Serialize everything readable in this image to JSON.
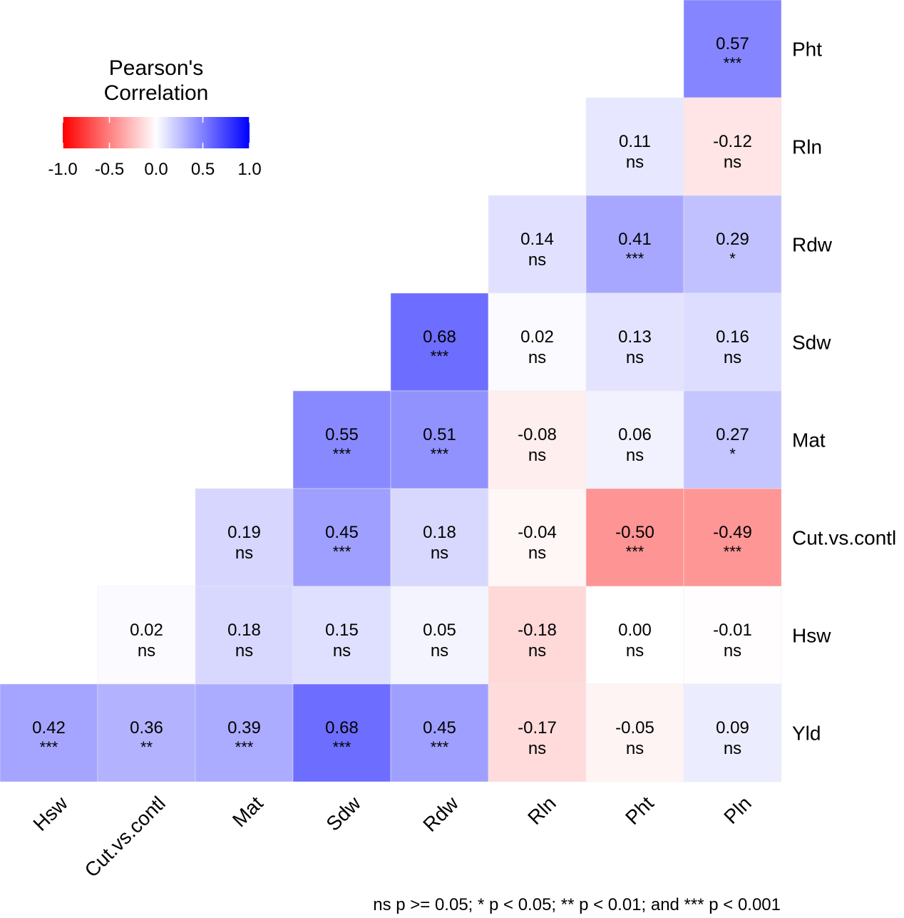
{
  "chart_data": {
    "type": "heatmap",
    "legend": {
      "title_line1": "Pearson's",
      "title_line2": "Correlation",
      "ticks": [
        -1.0,
        -0.5,
        0.0,
        0.5,
        1.0
      ],
      "tick_labels": [
        "-1.0",
        "-0.5",
        "0.0",
        "0.5",
        "1.0"
      ],
      "color_low": "#ff0000",
      "color_mid": "#ffffff",
      "color_high": "#0000ff",
      "placement": "top-left"
    },
    "x_labels": [
      "Hsw",
      "Cut.vs.contl",
      "Mat",
      "Sdw",
      "Rdw",
      "Rln",
      "Pht",
      "Pln"
    ],
    "y_labels": [
      "Pht",
      "Rln",
      "Rdw",
      "Sdw",
      "Mat",
      "Cut.vs.contl",
      "Hsw",
      "Yld"
    ],
    "cells": [
      {
        "row": 0,
        "col": 7,
        "value": 0.57,
        "label": "0.57",
        "sig": "***"
      },
      {
        "row": 1,
        "col": 6,
        "value": 0.11,
        "label": "0.11",
        "sig": "ns"
      },
      {
        "row": 1,
        "col": 7,
        "value": -0.12,
        "label": "-0.12",
        "sig": "ns"
      },
      {
        "row": 2,
        "col": 5,
        "value": 0.14,
        "label": "0.14",
        "sig": "ns"
      },
      {
        "row": 2,
        "col": 6,
        "value": 0.41,
        "label": "0.41",
        "sig": "***"
      },
      {
        "row": 2,
        "col": 7,
        "value": 0.29,
        "label": "0.29",
        "sig": "*"
      },
      {
        "row": 3,
        "col": 4,
        "value": 0.68,
        "label": "0.68",
        "sig": "***"
      },
      {
        "row": 3,
        "col": 5,
        "value": 0.02,
        "label": "0.02",
        "sig": "ns"
      },
      {
        "row": 3,
        "col": 6,
        "value": 0.13,
        "label": "0.13",
        "sig": "ns"
      },
      {
        "row": 3,
        "col": 7,
        "value": 0.16,
        "label": "0.16",
        "sig": "ns"
      },
      {
        "row": 4,
        "col": 3,
        "value": 0.55,
        "label": "0.55",
        "sig": "***"
      },
      {
        "row": 4,
        "col": 4,
        "value": 0.51,
        "label": "0.51",
        "sig": "***"
      },
      {
        "row": 4,
        "col": 5,
        "value": -0.08,
        "label": "-0.08",
        "sig": "ns"
      },
      {
        "row": 4,
        "col": 6,
        "value": 0.06,
        "label": "0.06",
        "sig": "ns"
      },
      {
        "row": 4,
        "col": 7,
        "value": 0.27,
        "label": "0.27",
        "sig": "*"
      },
      {
        "row": 5,
        "col": 2,
        "value": 0.19,
        "label": "0.19",
        "sig": "ns"
      },
      {
        "row": 5,
        "col": 3,
        "value": 0.45,
        "label": "0.45",
        "sig": "***"
      },
      {
        "row": 5,
        "col": 4,
        "value": 0.18,
        "label": "0.18",
        "sig": "ns"
      },
      {
        "row": 5,
        "col": 5,
        "value": -0.04,
        "label": "-0.04",
        "sig": "ns"
      },
      {
        "row": 5,
        "col": 6,
        "value": -0.5,
        "label": "-0.50",
        "sig": "***"
      },
      {
        "row": 5,
        "col": 7,
        "value": -0.49,
        "label": "-0.49",
        "sig": "***"
      },
      {
        "row": 6,
        "col": 1,
        "value": 0.02,
        "label": "0.02",
        "sig": "ns"
      },
      {
        "row": 6,
        "col": 2,
        "value": 0.18,
        "label": "0.18",
        "sig": "ns"
      },
      {
        "row": 6,
        "col": 3,
        "value": 0.15,
        "label": "0.15",
        "sig": "ns"
      },
      {
        "row": 6,
        "col": 4,
        "value": 0.05,
        "label": "0.05",
        "sig": "ns"
      },
      {
        "row": 6,
        "col": 5,
        "value": -0.18,
        "label": "-0.18",
        "sig": "ns"
      },
      {
        "row": 6,
        "col": 6,
        "value": 0.0,
        "label": "0.00",
        "sig": "ns"
      },
      {
        "row": 6,
        "col": 7,
        "value": -0.01,
        "label": "-0.01",
        "sig": "ns"
      },
      {
        "row": 7,
        "col": 0,
        "value": 0.42,
        "label": "0.42",
        "sig": "***"
      },
      {
        "row": 7,
        "col": 1,
        "value": 0.36,
        "label": "0.36",
        "sig": "**"
      },
      {
        "row": 7,
        "col": 2,
        "value": 0.39,
        "label": "0.39",
        "sig": "***"
      },
      {
        "row": 7,
        "col": 3,
        "value": 0.68,
        "label": "0.68",
        "sig": "***"
      },
      {
        "row": 7,
        "col": 4,
        "value": 0.45,
        "label": "0.45",
        "sig": "***"
      },
      {
        "row": 7,
        "col": 5,
        "value": -0.17,
        "label": "-0.17",
        "sig": "ns"
      },
      {
        "row": 7,
        "col": 6,
        "value": -0.05,
        "label": "-0.05",
        "sig": "ns"
      },
      {
        "row": 7,
        "col": 7,
        "value": 0.09,
        "label": "0.09",
        "sig": "ns"
      }
    ],
    "footnote": "ns p >= 0.05; * p < 0.05; ** p < 0.01; and *** p < 0.001"
  }
}
